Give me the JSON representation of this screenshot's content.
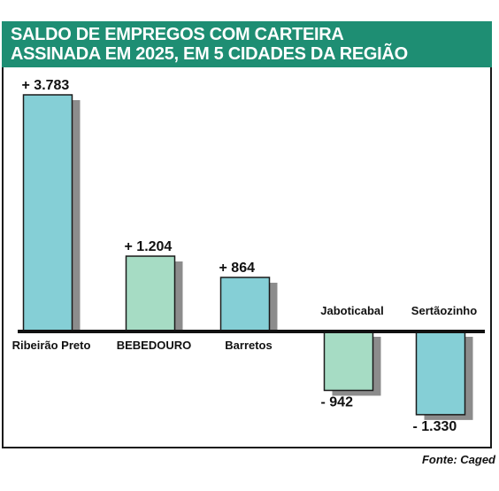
{
  "title_lines": [
    "SALDO DE EMPREGOS COM CARTEIRA",
    "ASSINADA EM 2025, EM 5 CIDADES DA REGIÃO"
  ],
  "source": "Fonte: Caged",
  "colors": {
    "header": "#1e8e73",
    "bar_blue": "#85cfd6",
    "bar_green": "#a6dcc4",
    "shadow": "#8c8c8c",
    "axis": "#111111"
  },
  "chart_data": {
    "type": "bar",
    "title": "SALDO DE EMPREGOS COM CARTEIRA ASSINADA EM 2025, EM 5 CIDADES DA REGIÃO",
    "categories": [
      "Ribeirão Preto",
      "BEBEDOURO",
      "Barretos",
      "Jaboticabal",
      "Sertãozinho"
    ],
    "values": [
      3783,
      1204,
      864,
      -942,
      -1330
    ],
    "value_labels": [
      "+ 3.783",
      "+ 1.204",
      "+ 864",
      "- 942",
      "- 1.330"
    ],
    "bar_colors": [
      "#85cfd6",
      "#a6dcc4",
      "#85cfd6",
      "#a6dcc4",
      "#85cfd6"
    ],
    "grid": false,
    "legend": "none"
  }
}
